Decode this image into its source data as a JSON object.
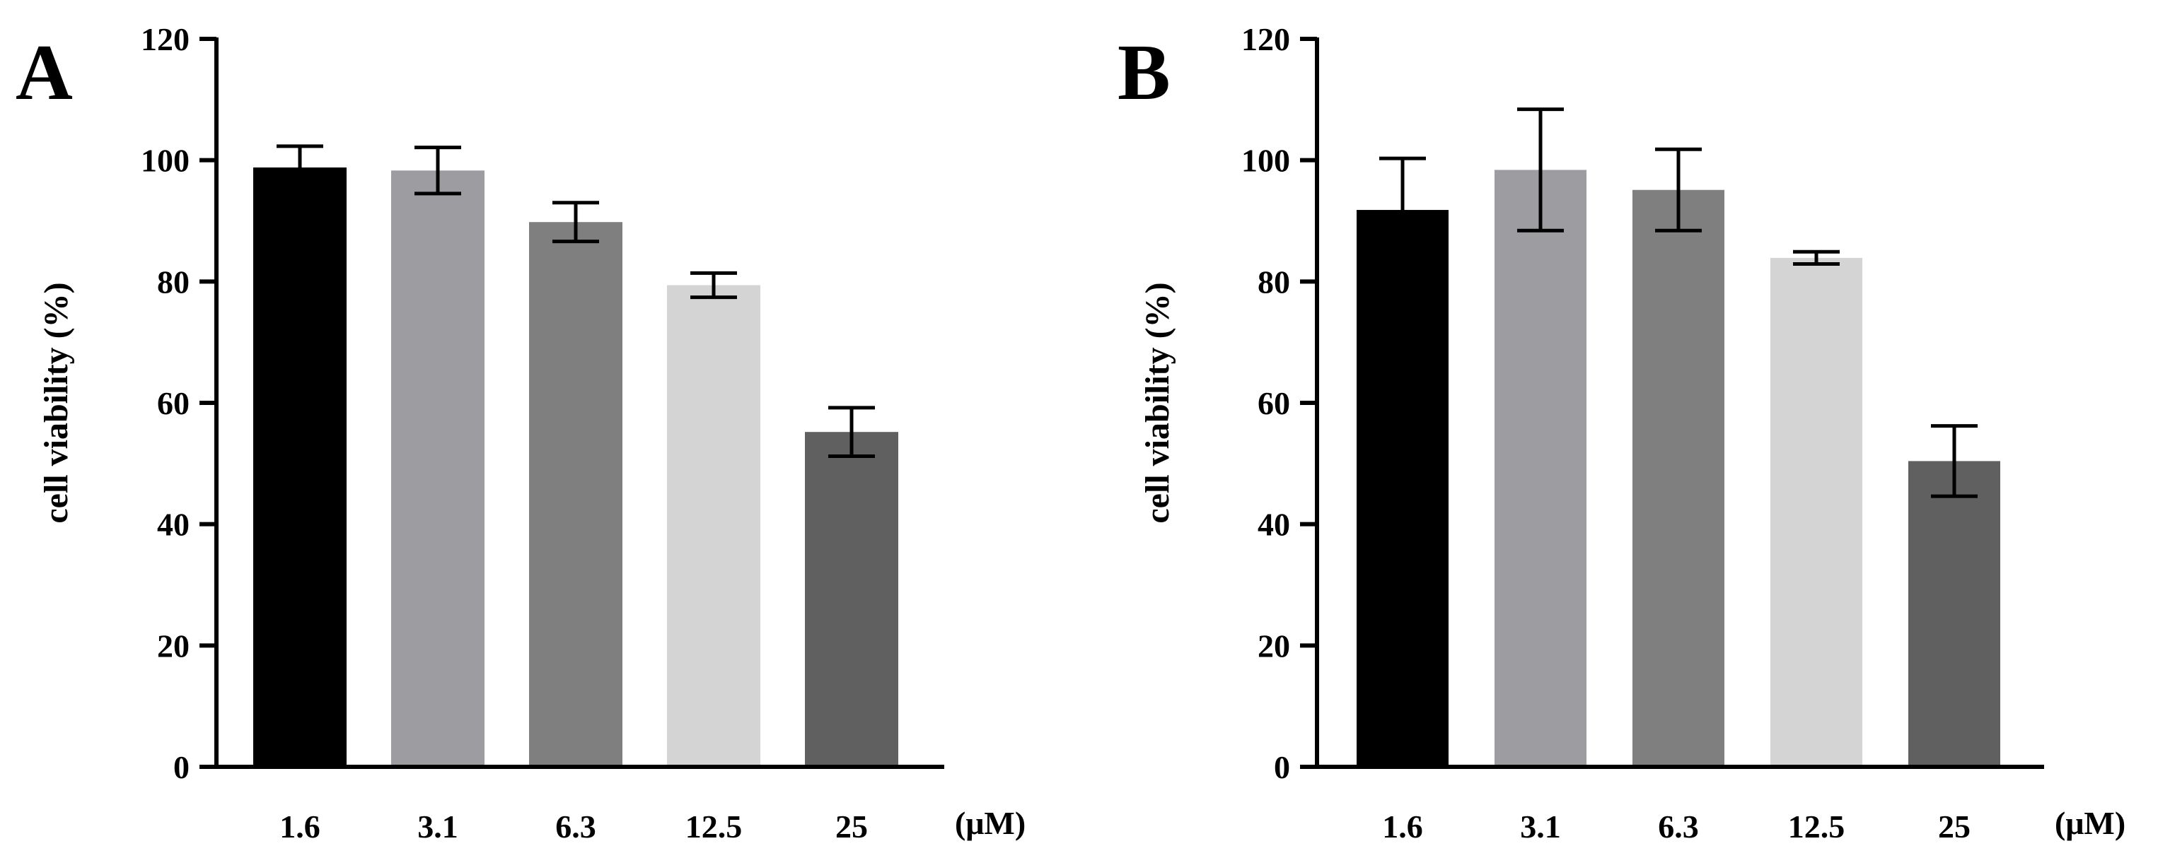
{
  "chart_data": [
    {
      "type": "bar",
      "panel_label": "A",
      "categories": [
        "1.6",
        "3.1",
        "6.3",
        "12.5",
        "25"
      ],
      "values": [
        98.8,
        98.3,
        89.8,
        79.4,
        55.2
      ],
      "errors": [
        3.5,
        3.8,
        3.2,
        2.0,
        4.0
      ],
      "bar_colors": [
        "#000000",
        "#9d9ca1",
        "#7f7f7f",
        "#d4d4d4",
        "#606060"
      ],
      "title": "",
      "xlabel": "",
      "unit_label": "(μM)",
      "ylabel": "cell viability (%)",
      "ylim": [
        0,
        120
      ],
      "yticks": [
        0,
        20,
        40,
        60,
        80,
        100,
        120
      ],
      "grid": false
    },
    {
      "type": "bar",
      "panel_label": "B",
      "categories": [
        "1.6",
        "3.1",
        "6.3",
        "12.5",
        "25"
      ],
      "values": [
        91.8,
        98.4,
        95.1,
        83.9,
        50.4
      ],
      "errors": [
        8.5,
        10.0,
        6.7,
        1.0,
        5.8
      ],
      "bar_colors": [
        "#000000",
        "#9d9ca1",
        "#7f7f7f",
        "#d4d4d4",
        "#606060"
      ],
      "title": "",
      "xlabel": "",
      "unit_label": "(μM)",
      "ylabel": "cell viability (%)",
      "ylim": [
        0,
        120
      ],
      "yticks": [
        0,
        20,
        40,
        60,
        80,
        100,
        120
      ],
      "grid": false
    }
  ]
}
